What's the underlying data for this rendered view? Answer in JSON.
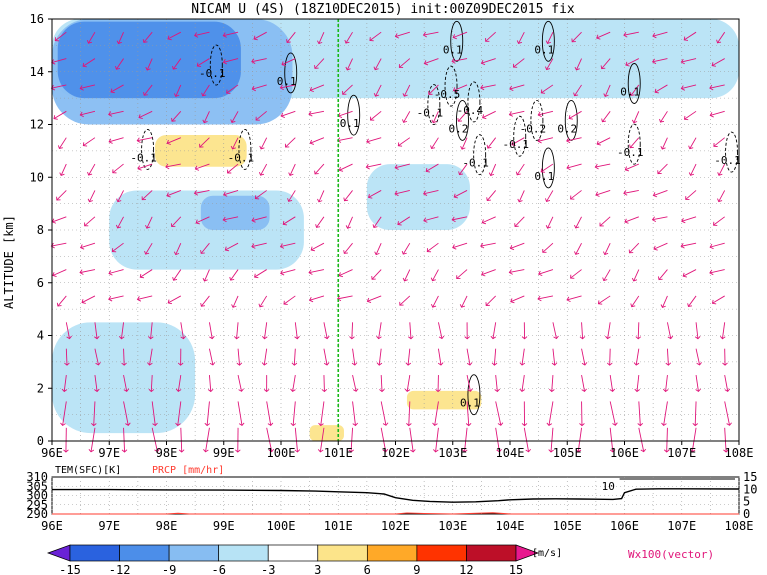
{
  "chart_data": [
    {
      "type": "heatmap",
      "title": "NICAM U (4S) (18Z10DEC2015) init:00Z09DEC2015 fix",
      "ylabel": "ALTITUDE [km]",
      "xlabel": "",
      "xlim": [
        96,
        108
      ],
      "ylim": [
        0,
        16
      ],
      "x_ticks": [
        "96E",
        "97E",
        "98E",
        "99E",
        "100E",
        "101E",
        "102E",
        "103E",
        "104E",
        "105E",
        "106E",
        "107E",
        "108E"
      ],
      "y_ticks": [
        "0",
        "2",
        "4",
        "6",
        "8",
        "10",
        "12",
        "14",
        "16"
      ],
      "grid": true,
      "marker_line_lon": 101,
      "shading_regions": [
        {
          "level": -9,
          "x": [
            96.1,
            99.3
          ],
          "y": [
            13.0,
            15.9
          ]
        },
        {
          "level": -6,
          "x": [
            96.0,
            100.2
          ],
          "y": [
            12.0,
            16.0
          ]
        },
        {
          "level": -6,
          "x": [
            98.6,
            99.8
          ],
          "y": [
            8.0,
            9.3
          ]
        },
        {
          "level": -3,
          "x": [
            96.0,
            108.0
          ],
          "y": [
            13.0,
            16.0
          ]
        },
        {
          "level": -3,
          "x": [
            97.0,
            100.4
          ],
          "y": [
            6.5,
            9.5
          ]
        },
        {
          "level": -3,
          "x": [
            101.5,
            103.3
          ],
          "y": [
            8.0,
            10.5
          ]
        },
        {
          "level": -3,
          "x": [
            96.0,
            98.5
          ],
          "y": [
            0.3,
            4.5
          ]
        },
        {
          "level": 3,
          "x": [
            97.8,
            99.4
          ],
          "y": [
            10.4,
            11.6
          ]
        },
        {
          "level": 3,
          "x": [
            102.2,
            103.5
          ],
          "y": [
            1.2,
            1.9
          ]
        },
        {
          "level": 3,
          "x": [
            100.5,
            101.1
          ],
          "y": [
            0.0,
            0.6
          ]
        }
      ],
      "contours_w": [
        {
          "label": "-0.1",
          "x": 98.8,
          "y": 13.8
        },
        {
          "label": "0.1",
          "x": 100.1,
          "y": 13.5
        },
        {
          "label": "-0.1",
          "x": 97.6,
          "y": 10.6
        },
        {
          "label": "-0.1",
          "x": 99.3,
          "y": 10.6
        },
        {
          "label": "0.1",
          "x": 101.2,
          "y": 11.9
        },
        {
          "label": "-0.1",
          "x": 102.6,
          "y": 12.3
        },
        {
          "label": "0.1",
          "x": 103.0,
          "y": 14.7
        },
        {
          "label": "0.1",
          "x": 104.6,
          "y": 14.7
        },
        {
          "label": "-0.5",
          "x": 102.9,
          "y": 13.0
        },
        {
          "label": "-0.4",
          "x": 103.3,
          "y": 12.4
        },
        {
          "label": "0.2",
          "x": 103.1,
          "y": 11.7
        },
        {
          "label": "-0.2",
          "x": 104.4,
          "y": 11.7
        },
        {
          "label": "0.2",
          "x": 105.0,
          "y": 11.7
        },
        {
          "label": "-0.1",
          "x": 103.4,
          "y": 10.4
        },
        {
          "label": "-0.1",
          "x": 104.1,
          "y": 11.1
        },
        {
          "label": "0.1",
          "x": 104.6,
          "y": 9.9
        },
        {
          "label": "-0.1",
          "x": 106.1,
          "y": 10.8
        },
        {
          "label": "0.1",
          "x": 106.1,
          "y": 13.1
        },
        {
          "label": "-0.1",
          "x": 107.8,
          "y": 10.5
        },
        {
          "label": "0.1",
          "x": 103.3,
          "y": 1.3
        }
      ],
      "colorbar": {
        "levels": [
          "-15",
          "-12",
          "-9",
          "-6",
          "-3",
          "3",
          "6",
          "9",
          "12",
          "15"
        ],
        "colors": [
          "#6a22d6",
          "#2a62df",
          "#4c8ee9",
          "#87bdf2",
          "#b7e3f5",
          "#ffffff",
          "#fce48a",
          "#ffa928",
          "#ff3300",
          "#bd0f28",
          "#e8198e"
        ],
        "unit": "[m/s]"
      },
      "vector_label": "Wx100(vector)",
      "vector_color": "#e0157a"
    },
    {
      "type": "line",
      "xlim": [
        96,
        108
      ],
      "left_ylim": [
        290,
        310
      ],
      "left_y_ticks": [
        "310",
        "305",
        "300",
        "295",
        "290"
      ],
      "right_ylim": [
        0,
        15
      ],
      "right_y_ticks": [
        "15",
        "10",
        "5",
        "0"
      ],
      "x_ticks": [
        "96E",
        "97E",
        "98E",
        "99E",
        "100E",
        "101E",
        "102E",
        "103E",
        "104E",
        "105E",
        "106E",
        "107E",
        "108E"
      ],
      "series": [
        {
          "name": "TEM(SFC)[K]",
          "color": "#000000",
          "x": [
            96,
            97,
            98,
            99,
            100,
            100.6,
            101,
            101.5,
            101.8,
            102.0,
            102.3,
            102.6,
            103.0,
            103.4,
            103.8,
            104.0,
            104.4,
            104.8,
            105.2,
            105.5,
            105.8,
            105.95,
            106.0,
            106.2,
            106.6,
            107,
            108
          ],
          "values": [
            303.2,
            303.2,
            303.0,
            302.9,
            302.7,
            302.4,
            302.0,
            301.5,
            300.8,
            298.8,
            297.4,
            296.8,
            296.4,
            296.6,
            297.2,
            297.7,
            298.1,
            298.2,
            298.1,
            298.0,
            297.9,
            298.3,
            301.5,
            303.4,
            303.6,
            303.6,
            303.5
          ]
        },
        {
          "name": "PRCP [mm/hr]",
          "color": "#ff3b2f",
          "x": [
            96,
            97,
            98,
            98.2,
            98.4,
            99,
            100,
            102,
            102.2,
            102.5,
            103,
            103.7,
            104,
            105,
            106,
            107,
            108
          ],
          "values": [
            0,
            0,
            0,
            0.3,
            0,
            0,
            0,
            0,
            0.4,
            0.2,
            0,
            0.5,
            0,
            0,
            0,
            0,
            0
          ]
        }
      ],
      "annotations": [
        {
          "text": "10",
          "x": 105.6
        }
      ]
    }
  ]
}
